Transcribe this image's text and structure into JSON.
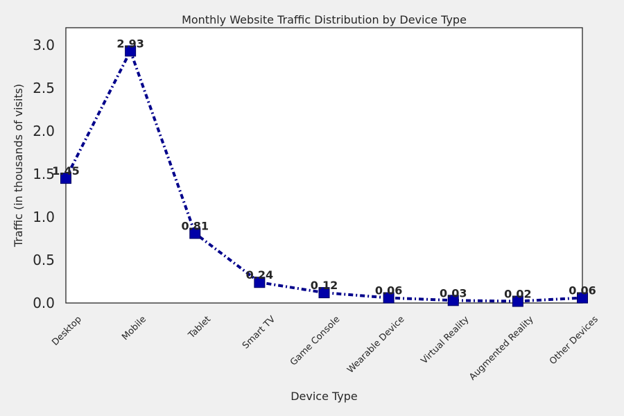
{
  "chart_data": {
    "type": "line",
    "title": "Monthly Website Traffic Distribution by Device Type",
    "xlabel": "Device Type",
    "ylabel": "Traffic (in thousands of visits)",
    "categories": [
      "Desktop",
      "Mobile",
      "Tablet",
      "Smart TV",
      "Game Console",
      "Wearable Device",
      "Virtual Reality",
      "Augmented Reality",
      "Other Devices"
    ],
    "series": [
      {
        "values": [
          1.45,
          2.93,
          0.81,
          0.24,
          0.12,
          0.06,
          0.03,
          0.02,
          0.06
        ]
      }
    ],
    "data_labels": [
      "1.45",
      "2.93",
      "0.81",
      "0.24",
      "0.12",
      "0.06",
      "0.03",
      "0.02",
      "0.06"
    ],
    "ylim": [
      0,
      3.2
    ],
    "yticks": [
      0.0,
      0.5,
      1.0,
      1.5,
      2.0,
      2.5,
      3.0
    ],
    "ytick_labels": [
      "0.0",
      "0.5",
      "1.0",
      "1.5",
      "2.0",
      "2.5",
      "3.0"
    ],
    "grid": false,
    "line_style": "dash-dot",
    "marker": "square",
    "line_color": "#00008b",
    "marker_color": "#0000a8",
    "background_color": "#f0f0f0",
    "plot_background_color": "#ffffff"
  }
}
